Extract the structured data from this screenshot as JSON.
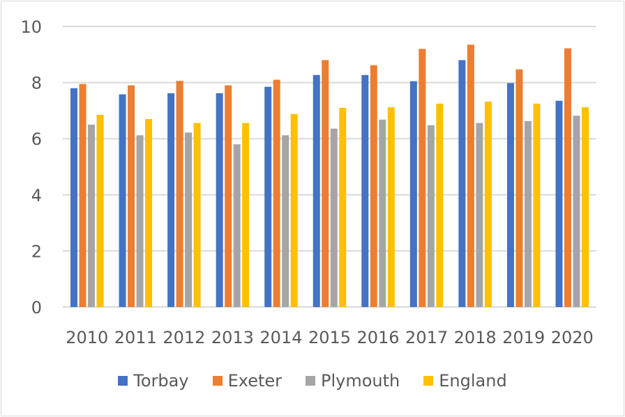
{
  "chart_data": {
    "type": "bar",
    "title": "",
    "xlabel": "",
    "ylabel": "",
    "ylim": [
      0,
      10
    ],
    "yticks": [
      0,
      2,
      4,
      6,
      8,
      10
    ],
    "grid": true,
    "legend_position": "bottom",
    "categories": [
      "2010",
      "2011",
      "2012",
      "2013",
      "2014",
      "2015",
      "2016",
      "2017",
      "2018",
      "2019",
      "2020"
    ],
    "series": [
      {
        "name": "Torbay",
        "color": "#4472c4",
        "values": [
          7.8,
          7.58,
          7.62,
          7.62,
          7.85,
          8.27,
          8.27,
          8.05,
          8.8,
          7.98,
          7.35
        ]
      },
      {
        "name": "Exeter",
        "color": "#ed7d31",
        "values": [
          7.95,
          7.9,
          8.06,
          7.9,
          8.1,
          8.8,
          8.62,
          9.2,
          9.35,
          8.47,
          9.22
        ]
      },
      {
        "name": "Plymouth",
        "color": "#a5a5a5",
        "values": [
          6.5,
          6.12,
          6.22,
          5.8,
          6.12,
          6.36,
          6.68,
          6.48,
          6.56,
          6.63,
          6.82
        ]
      },
      {
        "name": "England",
        "color": "#ffc000",
        "values": [
          6.85,
          6.7,
          6.56,
          6.56,
          6.88,
          7.1,
          7.12,
          7.25,
          7.32,
          7.25,
          7.12
        ]
      }
    ]
  }
}
